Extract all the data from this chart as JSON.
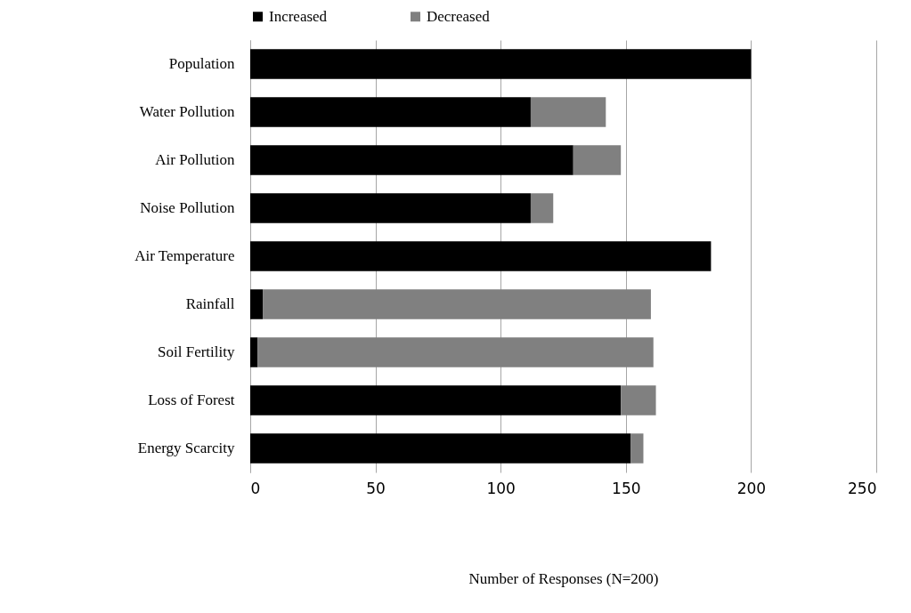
{
  "chart_data": {
    "type": "bar",
    "orientation": "horizontal",
    "stacked": true,
    "categories": [
      "Population",
      "Water Pollution",
      "Air Pollution",
      "Noise Pollution",
      "Air Temperature",
      "Rainfall",
      "Soil Fertility",
      "Loss of Forest",
      "Energy Scarcity"
    ],
    "series": [
      {
        "name": "Increased",
        "color": "#000000",
        "values": [
          200,
          112,
          129,
          112,
          184,
          5,
          3,
          148,
          152
        ]
      },
      {
        "name": "Decreased",
        "color": "#808080",
        "values": [
          null,
          30,
          19,
          9,
          null,
          155,
          158,
          14,
          5
        ]
      }
    ],
    "xlim": [
      0,
      250
    ],
    "xticks": [
      0,
      50,
      100,
      150,
      200,
      250
    ],
    "xlabel": "Number of Responses (N=200)",
    "grid": "x",
    "legend": "top"
  }
}
